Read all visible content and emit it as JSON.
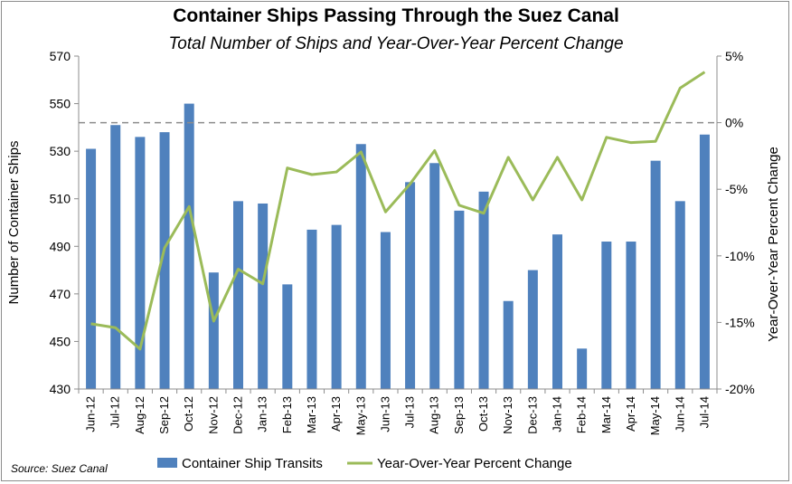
{
  "chart_data": {
    "type": "bar+line",
    "title": "Container Ships Passing Through the Suez Canal",
    "subtitle": "Total Number of Ships and Year-Over-Year Percent Change",
    "source": "Source: Suez Canal",
    "categories": [
      "Jun-12",
      "Jul-12",
      "Aug-12",
      "Sep-12",
      "Oct-12",
      "Nov-12",
      "Dec-12",
      "Jan-13",
      "Feb-13",
      "Mar-13",
      "Apr-13",
      "May-13",
      "Jun-13",
      "Jul-13",
      "Aug-13",
      "Sep-13",
      "Oct-13",
      "Nov-13",
      "Dec-13",
      "Jan-14",
      "Feb-14",
      "Mar-14",
      "Apr-14",
      "May-14",
      "Jun-14",
      "Jul-14"
    ],
    "ylabel_left": "Number of Container Ships",
    "ylabel_right": "Year-Over-Year  Percent Change",
    "ylim_left": [
      430,
      570
    ],
    "yticks_left": [
      "430",
      "450",
      "470",
      "490",
      "510",
      "530",
      "550",
      "570"
    ],
    "ylim_right": [
      -20,
      5
    ],
    "yticks_right": [
      "-20%",
      "-15%",
      "-10%",
      "-5%",
      "0%",
      "5%"
    ],
    "zero_line": true,
    "legend_position": "bottom",
    "series": [
      {
        "name": "Container Ship Transits",
        "kind": "bar",
        "axis": "left",
        "color": "#4f81bd",
        "values": [
          531,
          541,
          536,
          538,
          550,
          479,
          509,
          508,
          474,
          497,
          499,
          533,
          496,
          517,
          525,
          505,
          513,
          467,
          480,
          495,
          447,
          492,
          492,
          526,
          509,
          537
        ]
      },
      {
        "name": "Year-Over-Year Percent Change",
        "kind": "line",
        "axis": "right",
        "color": "#9bbb59",
        "values": [
          -15.1,
          -15.4,
          -17.0,
          -9.4,
          -6.3,
          -14.9,
          -11.0,
          -12.1,
          -3.4,
          -3.9,
          -3.7,
          -2.2,
          -6.7,
          -4.6,
          -2.1,
          -6.2,
          -6.8,
          -2.6,
          -5.8,
          -2.6,
          -5.8,
          -1.1,
          -1.5,
          -1.4,
          2.6,
          3.8
        ]
      }
    ]
  }
}
